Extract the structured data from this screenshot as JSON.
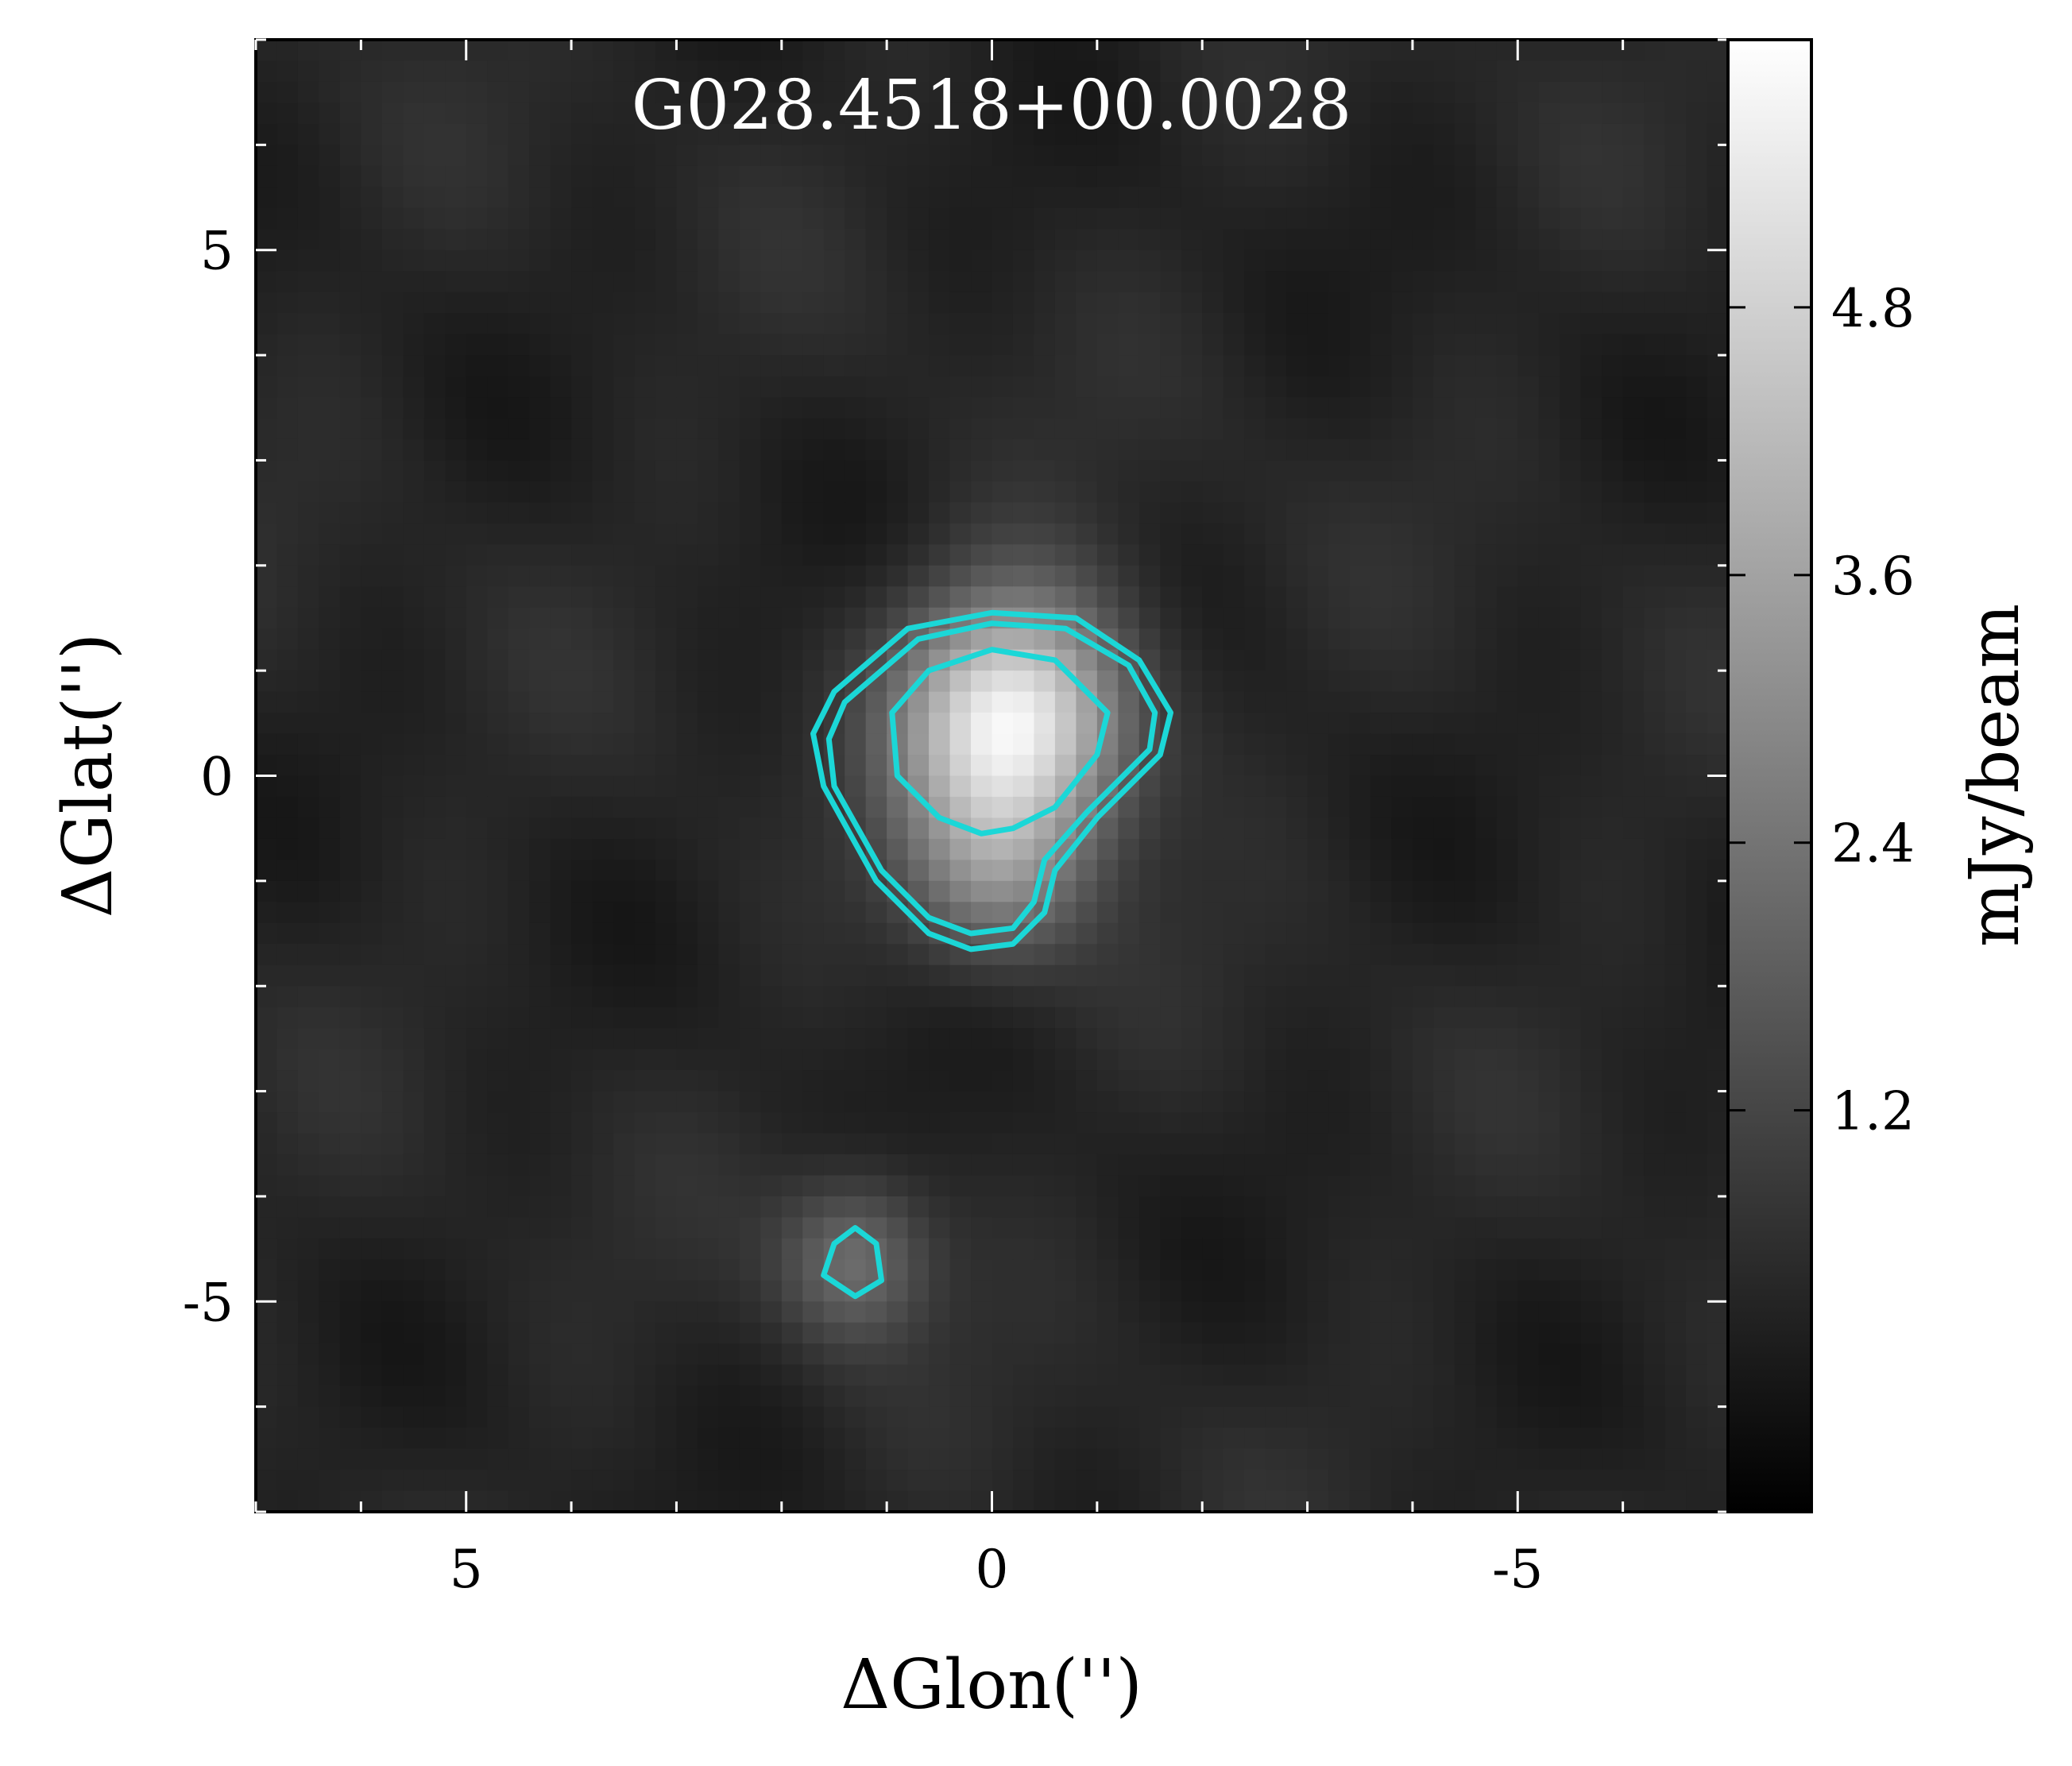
{
  "chart_data": {
    "type": "heatmap",
    "title": "G028.4518+00.0028",
    "xlabel": "ΔGlon('')",
    "ylabel": "ΔGlat('')",
    "colorbar_label": "mJy/beam",
    "xlim": [
      7,
      -7
    ],
    "ylim": [
      -7,
      7
    ],
    "x_ticks": [
      5,
      0,
      -5
    ],
    "x_tick_labels": [
      "5",
      "0",
      "-5"
    ],
    "y_ticks": [
      5,
      0,
      -5
    ],
    "y_tick_labels": [
      "5",
      "0",
      "-5"
    ],
    "colorbar_range": [
      -0.6,
      6.0
    ],
    "colorbar_ticks": [
      1.2,
      2.4,
      3.6,
      4.8
    ],
    "colorbar_tick_labels": [
      "1.2",
      "2.4",
      "3.6",
      "4.8"
    ],
    "colormap": "gray",
    "contour_color": "#1bd7d7",
    "peak": {
      "x": -0.2,
      "y": 0.5,
      "value": 5.5
    },
    "secondary_peak": {
      "x": 1.3,
      "y": -4.6,
      "value": 1.9
    },
    "contours": [
      {
        "name": "outer-a",
        "points": [
          [
            1.5,
            0.8
          ],
          [
            0.8,
            1.4
          ],
          [
            0.0,
            1.55
          ],
          [
            -0.8,
            1.5
          ],
          [
            -1.4,
            1.1
          ],
          [
            -1.7,
            0.6
          ],
          [
            -1.6,
            0.2
          ],
          [
            -1.0,
            -0.4
          ],
          [
            -0.6,
            -0.9
          ],
          [
            -0.5,
            -1.3
          ],
          [
            -0.2,
            -1.6
          ],
          [
            0.2,
            -1.65
          ],
          [
            0.6,
            -1.5
          ],
          [
            1.1,
            -1.0
          ],
          [
            1.6,
            -0.1
          ],
          [
            1.7,
            0.4
          ]
        ]
      },
      {
        "name": "outer-b",
        "points": [
          [
            1.4,
            0.7
          ],
          [
            0.7,
            1.3
          ],
          [
            0.0,
            1.45
          ],
          [
            -0.7,
            1.4
          ],
          [
            -1.3,
            1.05
          ],
          [
            -1.55,
            0.6
          ],
          [
            -1.5,
            0.25
          ],
          [
            -0.9,
            -0.35
          ],
          [
            -0.5,
            -0.8
          ],
          [
            -0.4,
            -1.2
          ],
          [
            -0.2,
            -1.45
          ],
          [
            0.2,
            -1.5
          ],
          [
            0.6,
            -1.35
          ],
          [
            1.05,
            -0.9
          ],
          [
            1.5,
            -0.1
          ],
          [
            1.55,
            0.35
          ]
        ]
      },
      {
        "name": "inner",
        "points": [
          [
            0.6,
            1.0
          ],
          [
            0.0,
            1.2
          ],
          [
            -0.6,
            1.1
          ],
          [
            -1.1,
            0.6
          ],
          [
            -1.0,
            0.2
          ],
          [
            -0.6,
            -0.3
          ],
          [
            -0.2,
            -0.5
          ],
          [
            0.1,
            -0.55
          ],
          [
            0.5,
            -0.4
          ],
          [
            0.9,
            0.0
          ],
          [
            0.95,
            0.6
          ]
        ]
      },
      {
        "name": "small",
        "points": [
          [
            1.3,
            -4.3
          ],
          [
            1.1,
            -4.45
          ],
          [
            1.05,
            -4.8
          ],
          [
            1.3,
            -4.95
          ],
          [
            1.6,
            -4.75
          ],
          [
            1.5,
            -4.45
          ]
        ]
      }
    ]
  }
}
